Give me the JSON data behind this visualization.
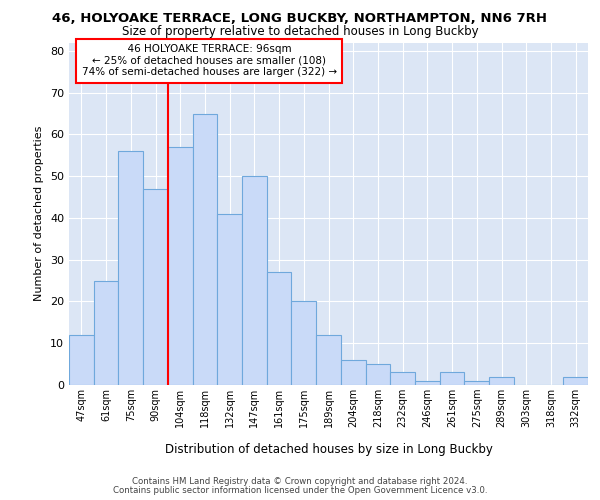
{
  "title_line1": "46, HOLYOAKE TERRACE, LONG BUCKBY, NORTHAMPTON, NN6 7RH",
  "title_line2": "Size of property relative to detached houses in Long Buckby",
  "xlabel": "Distribution of detached houses by size in Long Buckby",
  "ylabel": "Number of detached properties",
  "bar_labels": [
    "47sqm",
    "61sqm",
    "75sqm",
    "90sqm",
    "104sqm",
    "118sqm",
    "132sqm",
    "147sqm",
    "161sqm",
    "175sqm",
    "189sqm",
    "204sqm",
    "218sqm",
    "232sqm",
    "246sqm",
    "261sqm",
    "275sqm",
    "289sqm",
    "303sqm",
    "318sqm",
    "332sqm"
  ],
  "bar_heights": [
    12,
    25,
    56,
    47,
    57,
    65,
    41,
    50,
    27,
    20,
    12,
    6,
    5,
    3,
    1,
    3,
    1,
    2,
    0,
    0,
    2
  ],
  "bar_color": "#c9daf8",
  "bar_edge_color": "#6fa8dc",
  "red_line_x": 3.5,
  "ylim": [
    0,
    82
  ],
  "yticks": [
    0,
    10,
    20,
    30,
    40,
    50,
    60,
    70,
    80
  ],
  "annotation_title": "46 HOLYOAKE TERRACE: 96sqm",
  "annotation_line1": "← 25% of detached houses are smaller (108)",
  "annotation_line2": "74% of semi-detached houses are larger (322) →",
  "footer_line1": "Contains HM Land Registry data © Crown copyright and database right 2024.",
  "footer_line2": "Contains public sector information licensed under the Open Government Licence v3.0.",
  "bg_color": "#dce6f5"
}
